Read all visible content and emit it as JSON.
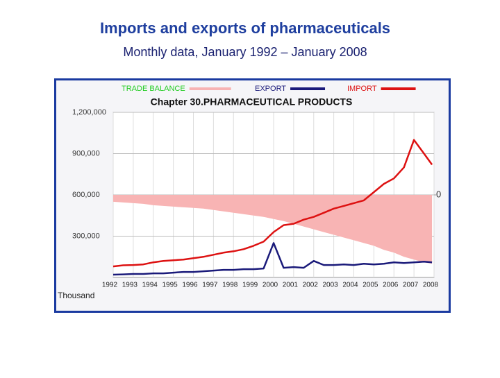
{
  "header": {
    "title": "Imports and exports of pharmaceuticals",
    "subtitle": "Monthly data, January 1992 – January 2008"
  },
  "chart_data": {
    "type": "line",
    "title": "Chapter 30.PHARMACEUTICAL PRODUCTS",
    "ylabel": "Thousand",
    "grid": true,
    "x": [
      1992,
      1992.5,
      1993,
      1993.5,
      1994,
      1994.5,
      1995,
      1995.5,
      1996,
      1996.5,
      1997,
      1997.5,
      1998,
      1998.5,
      1999,
      1999.5,
      2000,
      2000.5,
      2001,
      2001.5,
      2002,
      2002.5,
      2003,
      2003.5,
      2004,
      2004.5,
      2005,
      2005.5,
      2006,
      2006.5,
      2007,
      2007.5,
      2007.9
    ],
    "xlim": [
      1992,
      2008
    ],
    "xticks": [
      1992,
      1993,
      1994,
      1995,
      1996,
      1997,
      1998,
      1999,
      2000,
      2001,
      2002,
      2003,
      2004,
      2005,
      2006,
      2007,
      2008
    ],
    "ylim": [
      0,
      1200000
    ],
    "yticks": [
      {
        "value": 300000,
        "label": "300,000"
      },
      {
        "value": 600000,
        "label": "600,000"
      },
      {
        "value": 900000,
        "label": "900,000"
      },
      {
        "value": 1200000,
        "label": "1,200,000"
      }
    ],
    "y2lim": [
      -600000,
      600000
    ],
    "y2ticks": [
      0
    ],
    "series": [
      {
        "name": "TRADE BALANCE",
        "type": "area",
        "axis": "y2",
        "color": "#f8b4b4",
        "legend_color": "#22cc22",
        "values": [
          -50000,
          -55000,
          -60000,
          -65000,
          -75000,
          -80000,
          -85000,
          -90000,
          -95000,
          -100000,
          -110000,
          -120000,
          -130000,
          -140000,
          -150000,
          -160000,
          -175000,
          -190000,
          -210000,
          -230000,
          -250000,
          -270000,
          -290000,
          -310000,
          -330000,
          -350000,
          -370000,
          -400000,
          -420000,
          -450000,
          -470000,
          -490000,
          -500000
        ]
      },
      {
        "name": "EXPORT",
        "type": "line",
        "color": "#1a1a7a",
        "legend_color": "#1a1a7a",
        "values": [
          20000,
          22000,
          25000,
          25000,
          30000,
          30000,
          35000,
          40000,
          40000,
          45000,
          50000,
          55000,
          55000,
          60000,
          60000,
          65000,
          250000,
          70000,
          75000,
          70000,
          120000,
          90000,
          90000,
          95000,
          90000,
          100000,
          95000,
          100000,
          110000,
          105000,
          110000,
          115000,
          110000
        ]
      },
      {
        "name": "IMPORT",
        "type": "line",
        "color": "#dd1111",
        "legend_color": "#dd1111",
        "values": [
          80000,
          88000,
          90000,
          95000,
          110000,
          120000,
          125000,
          130000,
          140000,
          150000,
          165000,
          180000,
          190000,
          205000,
          230000,
          260000,
          330000,
          380000,
          390000,
          420000,
          440000,
          470000,
          500000,
          520000,
          540000,
          560000,
          620000,
          680000,
          720000,
          800000,
          1000000,
          900000,
          820000
        ]
      }
    ]
  }
}
